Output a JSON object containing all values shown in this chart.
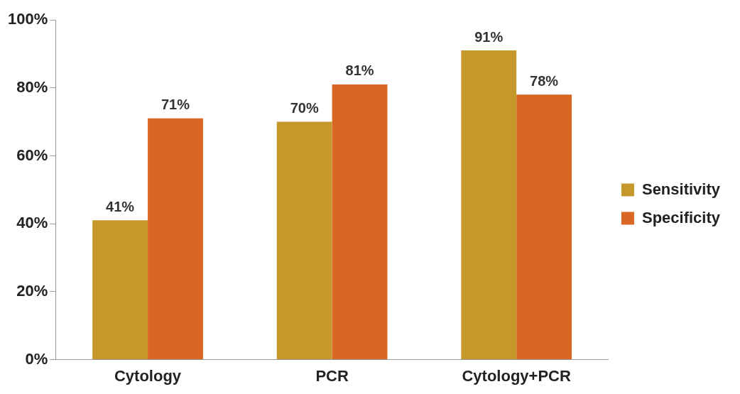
{
  "chart_data": {
    "type": "bar",
    "categories": [
      "Cytology",
      "PCR",
      "Cytology+PCR"
    ],
    "series": [
      {
        "name": "Sensitivity",
        "color": "#c4982b",
        "values": [
          41,
          70,
          91
        ],
        "value_labels": [
          "41%",
          "70%",
          "91%"
        ]
      },
      {
        "name": "Specificity",
        "color": "#da6623",
        "values": [
          71,
          81,
          78
        ],
        "value_labels": [
          "71%",
          "81%",
          "78%"
        ]
      }
    ],
    "ylim": [
      0,
      100
    ],
    "yticks": [
      {
        "value": 0,
        "label": "0%"
      },
      {
        "value": 20,
        "label": "20%"
      },
      {
        "value": 40,
        "label": "40%"
      },
      {
        "value": 60,
        "label": "60%"
      },
      {
        "value": 80,
        "label": "80%"
      },
      {
        "value": 100,
        "label": "100%"
      }
    ],
    "grid": false,
    "legend": "right"
  }
}
